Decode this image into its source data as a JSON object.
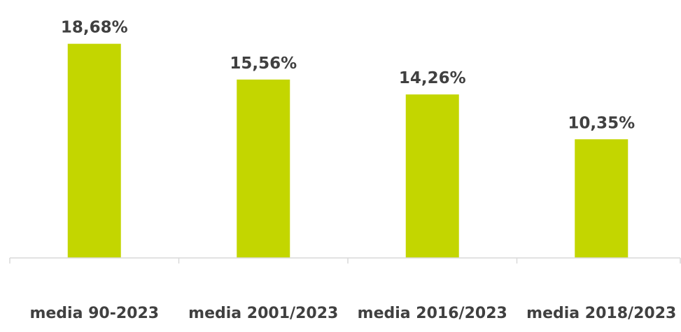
{
  "chart_data": {
    "type": "bar",
    "categories": [
      "media 90-2023",
      "media 2001/2023",
      "media 2016/2023",
      "media 2018/2023"
    ],
    "values": [
      18.68,
      15.56,
      14.26,
      10.35
    ],
    "value_labels": [
      "18,68%",
      "15,56%",
      "14,26%",
      "10,35%"
    ],
    "ylim": [
      0,
      20
    ],
    "grid": false,
    "legend": "none",
    "colors": {
      "bar": "#c3d600",
      "axis": "#d9d9d9",
      "text": "#404040"
    }
  }
}
